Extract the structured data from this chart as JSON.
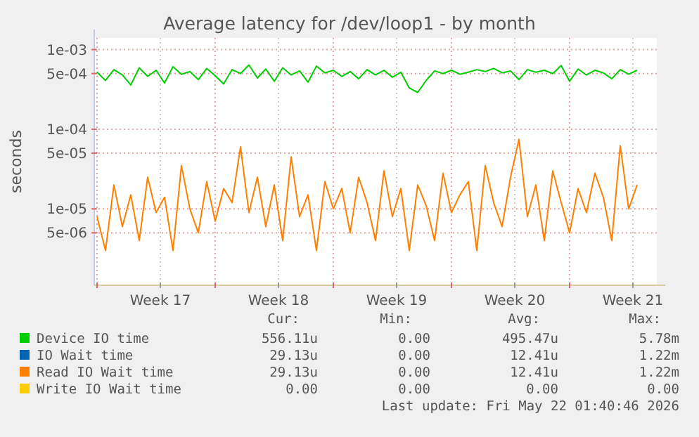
{
  "chart_data": {
    "type": "line",
    "title": "Average latency for /dev/loop1 - by month",
    "ylabel": "seconds",
    "log": true,
    "grid": true,
    "legend": "bottom",
    "line_style": "solid",
    "xlim": [
      "2026-04-19T20:00",
      "2026-05-23T04:00"
    ],
    "xticks": [
      {
        "value": "2026-04-20",
        "label": null
      },
      {
        "value": "2026-04-23T18:00",
        "label": "Week 17"
      },
      {
        "value": "2026-04-27",
        "label": null
      },
      {
        "value": "2026-04-30T18:00",
        "label": "Week 18"
      },
      {
        "value": "2026-05-04",
        "label": null
      },
      {
        "value": "2026-05-07T18:00",
        "label": "Week 19"
      },
      {
        "value": "2026-05-11",
        "label": null
      },
      {
        "value": "2026-05-14T18:00",
        "label": "Week 20"
      },
      {
        "value": "2026-05-18",
        "label": null
      },
      {
        "value": "2026-05-21T18:00",
        "label": "Week 21"
      }
    ],
    "ylim": [
      1.1e-06,
      0.0014
    ],
    "yticks": [
      {
        "value": 5e-06,
        "label": "5e-06"
      },
      {
        "value": 1e-05,
        "label": "1e-05"
      },
      {
        "value": 5e-05,
        "label": "5e-05"
      },
      {
        "value": 0.0001,
        "label": "1e-04"
      },
      {
        "value": 0.0005,
        "label": "5e-04"
      },
      {
        "value": 0.001,
        "label": "1e-03"
      }
    ],
    "x": [
      "2026-04-20T00:00",
      "2026-04-20T12:00",
      "2026-04-21T00:00",
      "2026-04-21T12:00",
      "2026-04-22T00:00",
      "2026-04-22T12:00",
      "2026-04-23T00:00",
      "2026-04-23T12:00",
      "2026-04-24T00:00",
      "2026-04-24T12:00",
      "2026-04-25T00:00",
      "2026-04-25T12:00",
      "2026-04-26T00:00",
      "2026-04-26T12:00",
      "2026-04-27T00:00",
      "2026-04-27T12:00",
      "2026-04-28T00:00",
      "2026-04-28T12:00",
      "2026-04-29T00:00",
      "2026-04-29T12:00",
      "2026-04-30T00:00",
      "2026-04-30T12:00",
      "2026-05-01T00:00",
      "2026-05-01T12:00",
      "2026-05-02T00:00",
      "2026-05-02T12:00",
      "2026-05-03T00:00",
      "2026-05-03T12:00",
      "2026-05-04T00:00",
      "2026-05-04T12:00",
      "2026-05-05T00:00",
      "2026-05-05T12:00",
      "2026-05-06T00:00",
      "2026-05-06T12:00",
      "2026-05-07T00:00",
      "2026-05-07T12:00",
      "2026-05-08T00:00",
      "2026-05-08T12:00",
      "2026-05-09T00:00",
      "2026-05-09T12:00",
      "2026-05-10T00:00",
      "2026-05-10T12:00",
      "2026-05-11T00:00",
      "2026-05-11T12:00",
      "2026-05-12T00:00",
      "2026-05-12T12:00",
      "2026-05-13T00:00",
      "2026-05-13T12:00",
      "2026-05-14T00:00",
      "2026-05-14T12:00",
      "2026-05-15T00:00",
      "2026-05-15T12:00",
      "2026-05-16T00:00",
      "2026-05-16T12:00",
      "2026-05-17T00:00",
      "2026-05-17T12:00",
      "2026-05-18T00:00",
      "2026-05-18T12:00",
      "2026-05-19T00:00",
      "2026-05-19T12:00",
      "2026-05-20T00:00",
      "2026-05-20T12:00",
      "2026-05-21T00:00",
      "2026-05-21T12:00",
      "2026-05-22T00:00"
    ],
    "series": [
      {
        "name": "Device IO time",
        "color": "#00cc00",
        "values": [
          0.00052,
          0.00041,
          0.00056,
          0.00048,
          0.00036,
          0.00059,
          0.00046,
          0.00055,
          0.00038,
          0.00061,
          0.00049,
          0.00053,
          0.00042,
          0.00058,
          0.00047,
          0.00037,
          0.00056,
          0.0005,
          0.00064,
          0.00044,
          0.00057,
          0.0004,
          0.00059,
          0.00048,
          0.00054,
          0.00039,
          0.00062,
          0.00051,
          0.00055,
          0.00046,
          0.00053,
          0.00043,
          0.00056,
          0.00048,
          0.00055,
          0.00045,
          0.00052,
          0.00033,
          0.00029,
          0.00041,
          0.00054,
          0.0005,
          0.00055,
          0.00049,
          0.00052,
          0.00056,
          0.00053,
          0.00058,
          0.00051,
          0.00054,
          0.00042,
          0.00056,
          0.00052,
          0.00055,
          0.0005,
          0.00063,
          0.0004,
          0.00057,
          0.00048,
          0.00055,
          0.00051,
          0.00043,
          0.00056,
          0.00049,
          0.00055
        ]
      },
      {
        "name": "IO Wait time",
        "color": "#0066b3",
        "values": [
          null,
          null,
          null,
          null,
          null,
          null,
          null,
          null,
          null,
          null,
          null,
          null,
          null,
          null,
          null,
          null,
          null,
          null,
          null,
          null,
          null,
          null,
          null,
          null,
          null,
          null,
          null,
          null,
          null,
          null,
          null,
          null,
          null,
          null,
          null,
          null,
          null,
          null,
          null,
          null,
          null,
          null,
          null,
          null,
          null,
          null,
          null,
          null,
          null,
          null,
          null,
          null,
          null,
          null,
          null,
          null,
          null,
          null,
          null,
          null,
          null,
          null,
          null,
          null,
          null
        ]
      },
      {
        "name": "Read IO Wait time",
        "color": "#ff8000",
        "values": [
          8e-06,
          3e-06,
          2e-05,
          6e-06,
          1.5e-05,
          4e-06,
          2.5e-05,
          9e-06,
          1.4e-05,
          3e-06,
          3.5e-05,
          1e-05,
          5e-06,
          2.2e-05,
          7e-06,
          1.8e-05,
          1.2e-05,
          6e-05,
          9e-06,
          2.5e-05,
          6e-06,
          2e-05,
          4e-06,
          4.5e-05,
          8e-06,
          1.5e-05,
          3e-06,
          2.2e-05,
          1e-05,
          1.8e-05,
          5e-06,
          2.5e-05,
          1.2e-05,
          4e-06,
          3e-05,
          8e-06,
          1.8e-05,
          3e-06,
          2e-05,
          1.1e-05,
          4e-06,
          2.8e-05,
          9e-06,
          1.5e-05,
          2.2e-05,
          3e-06,
          3.5e-05,
          1.2e-05,
          6e-06,
          2.5e-05,
          7.5e-05,
          8e-06,
          2e-05,
          4e-06,
          3e-05,
          1.2e-05,
          5e-06,
          1.8e-05,
          9e-06,
          2.8e-05,
          1.4e-05,
          4e-06,
          6.2e-05,
          1e-05,
          2e-05
        ]
      },
      {
        "name": "Write IO Wait time",
        "color": "#ffcc00",
        "values": [
          null,
          null,
          null,
          null,
          null,
          null,
          null,
          null,
          null,
          null,
          null,
          null,
          null,
          null,
          null,
          null,
          null,
          null,
          null,
          null,
          null,
          null,
          null,
          null,
          null,
          null,
          null,
          null,
          null,
          null,
          null,
          null,
          null,
          null,
          null,
          null,
          null,
          null,
          null,
          null,
          null,
          null,
          null,
          null,
          null,
          null,
          null,
          null,
          null,
          null,
          null,
          null,
          null,
          null,
          null,
          null,
          null,
          null,
          null,
          null,
          null,
          null,
          null,
          null,
          null
        ]
      }
    ],
    "annotations": [
      "Cur:",
      "Min:",
      "Avg:",
      "Max:",
      "556.11u",
      "0.00",
      "495.47u",
      "5.78m",
      "29.13u",
      "0.00",
      "12.41u",
      "1.22m",
      "29.13u",
      "0.00",
      "12.41u",
      "1.22m",
      "0.00",
      "0.00",
      "0.00",
      "0.00",
      "Last update: Fri May 22 01:40:46 2026"
    ]
  }
}
